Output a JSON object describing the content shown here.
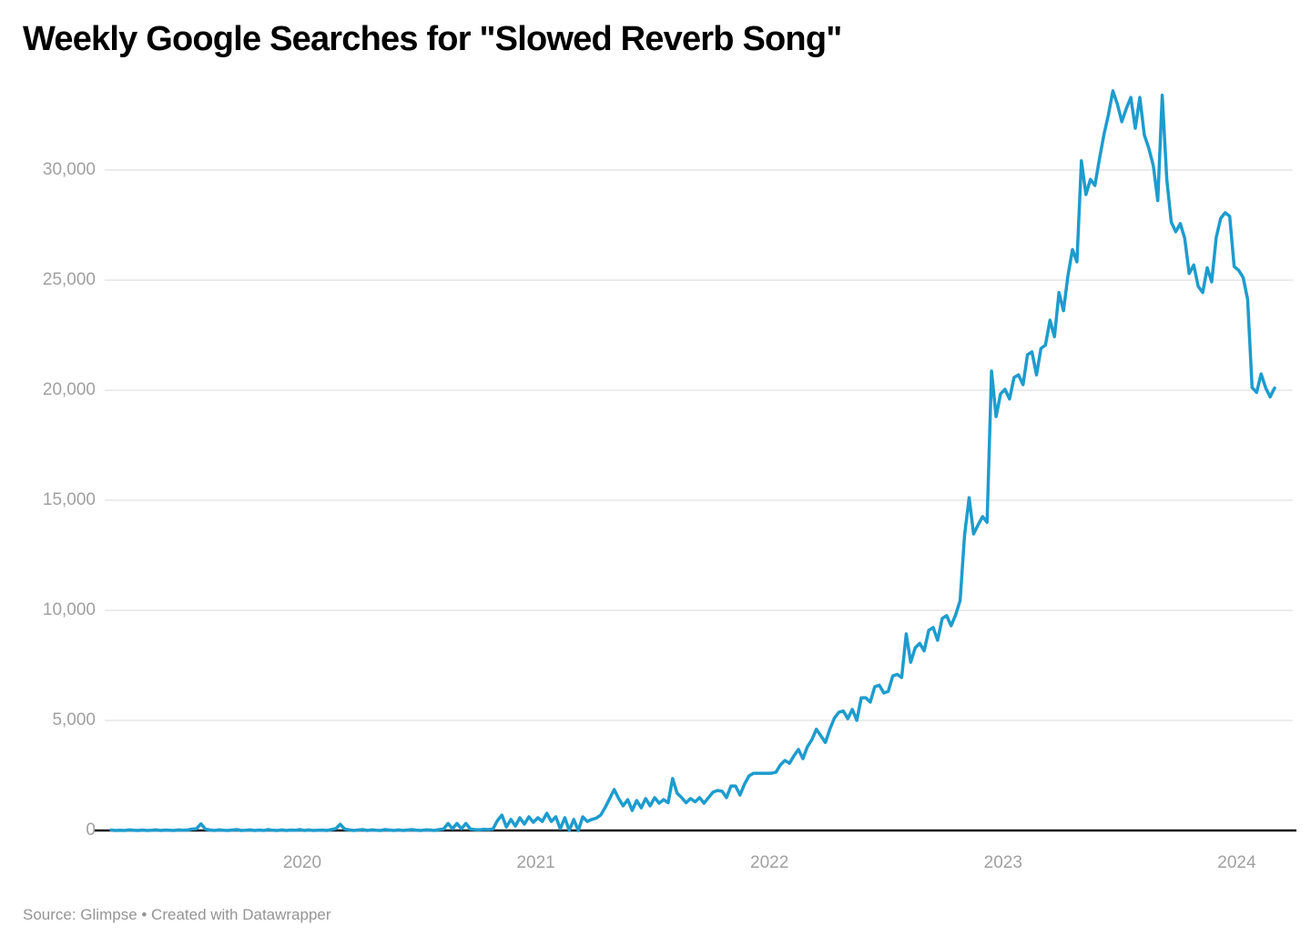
{
  "header": {
    "title": "Weekly Google Searches for \"Slowed Reverb Song\""
  },
  "footer": {
    "source_note": "Source: Glimpse • Created with Datawrapper"
  },
  "colors": {
    "line": "#1d9cce",
    "axis_baseline": "#111111",
    "gridline": "#e6e6e6",
    "tick_text": "#a0a0a0",
    "title_text": "#000000",
    "source_text": "#949494"
  },
  "chart_data": {
    "type": "line",
    "title": "Weekly Google Searches for \"Slowed Reverb Song\"",
    "xlabel": "",
    "ylabel": "",
    "grid": "horizontal-only",
    "legend": "none",
    "x_range_years": [
      2019.21,
      2024.17
    ],
    "x_interval": "weekly",
    "ylim": [
      0,
      33600
    ],
    "y_ticks": [
      {
        "value": 0,
        "label": "0"
      },
      {
        "value": 5000,
        "label": "5,000"
      },
      {
        "value": 10000,
        "label": "10,000"
      },
      {
        "value": 15000,
        "label": "15,000"
      },
      {
        "value": 20000,
        "label": "20,000"
      },
      {
        "value": 25000,
        "label": "25,000"
      },
      {
        "value": 30000,
        "label": "30,000"
      }
    ],
    "x_ticks": [
      {
        "year": 2020,
        "label": "2020"
      },
      {
        "year": 2021,
        "label": "2021"
      },
      {
        "year": 2022,
        "label": "2022"
      },
      {
        "year": 2023,
        "label": "2023"
      },
      {
        "year": 2024,
        "label": "2024"
      }
    ],
    "series": [
      {
        "name": "Weekly Google searches",
        "values": [
          20,
          0,
          10,
          0,
          30,
          10,
          0,
          20,
          0,
          10,
          30,
          0,
          20,
          10,
          0,
          30,
          10,
          20,
          60,
          80,
          300,
          60,
          20,
          0,
          30,
          10,
          0,
          20,
          40,
          0,
          10,
          30,
          0,
          20,
          0,
          40,
          10,
          0,
          30,
          0,
          20,
          10,
          40,
          0,
          30,
          0,
          10,
          20,
          0,
          40,
          80,
          280,
          60,
          30,
          0,
          20,
          40,
          0,
          30,
          10,
          0,
          40,
          20,
          0,
          30,
          0,
          20,
          40,
          10,
          0,
          30,
          20,
          0,
          40,
          60,
          320,
          80,
          320,
          80,
          320,
          60,
          40,
          30,
          50,
          40,
          60,
          450,
          700,
          160,
          500,
          200,
          580,
          290,
          620,
          370,
          580,
          410,
          780,
          410,
          620,
          80,
          580,
          0,
          500,
          0,
          620,
          410,
          500,
          560,
          700,
          1050,
          1450,
          1860,
          1450,
          1120,
          1400,
          910,
          1360,
          1030,
          1450,
          1120,
          1490,
          1240,
          1400,
          1260,
          2360,
          1700,
          1490,
          1260,
          1450,
          1300,
          1490,
          1240,
          1500,
          1740,
          1820,
          1780,
          1490,
          2020,
          2020,
          1610,
          2100,
          2480,
          2600,
          2600,
          2600,
          2600,
          2600,
          2650,
          2980,
          3180,
          3050,
          3390,
          3680,
          3260,
          3800,
          4130,
          4600,
          4300,
          4000,
          4600,
          5100,
          5370,
          5430,
          5080,
          5500,
          5000,
          6030,
          6030,
          5830,
          6530,
          6600,
          6250,
          6320,
          7020,
          7090,
          6950,
          8930,
          7640,
          8300,
          8500,
          8160,
          9090,
          9220,
          8640,
          9630,
          9760,
          9300,
          9800,
          10450,
          13430,
          15120,
          13470,
          13880,
          14260,
          14000,
          20870,
          18800,
          19830,
          20040,
          19600,
          20580,
          20700,
          20250,
          21610,
          21740,
          20700,
          21900,
          22050,
          23180,
          22430,
          24440,
          23610,
          25200,
          26390,
          25830,
          30420,
          28890,
          29580,
          29300,
          30500,
          31600,
          32500,
          33600,
          33000,
          32200,
          32800,
          33300,
          31900,
          33300,
          31600,
          31000,
          30200,
          28610,
          33400,
          29580,
          27640,
          27200,
          27570,
          26900,
          25300,
          25690,
          24720,
          24440,
          25560,
          24920,
          26940,
          27810,
          28060,
          27900,
          25620,
          25450,
          25120,
          24130,
          20120,
          19900,
          20740,
          20120,
          19700,
          20100
        ]
      }
    ]
  },
  "layout_note": "weekly data, Mar 2019 - Mar 2024"
}
